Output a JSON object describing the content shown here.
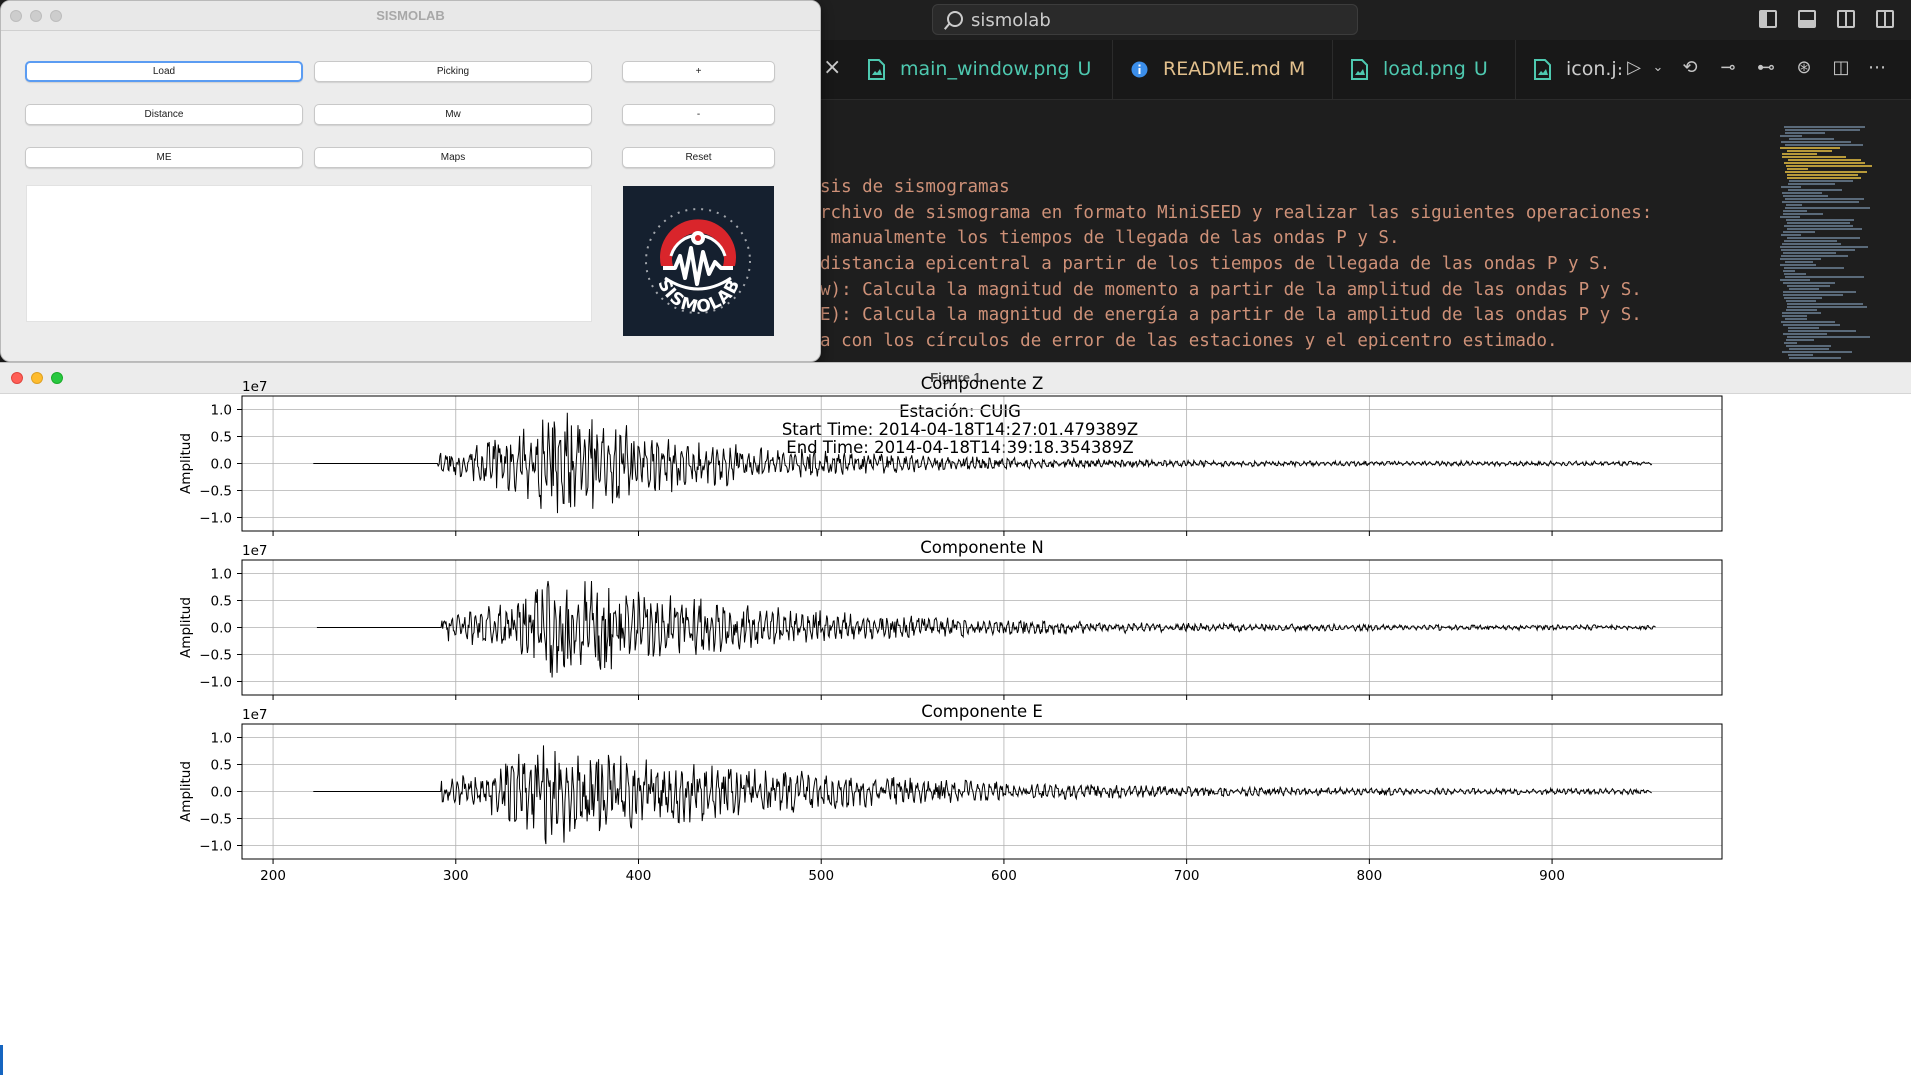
{
  "vscode": {
    "search_text": "sismolab",
    "tabs": [
      {
        "name": "main_window.png",
        "status": "U",
        "color": "#4ec9b0",
        "icon": "image-file-icon"
      },
      {
        "name": "README.md",
        "status": "M",
        "color": "#e2c08d",
        "icon": "info-icon"
      },
      {
        "name": "load.png",
        "status": "U",
        "color": "#4ec9b0",
        "icon": "image-file-icon"
      },
      {
        "name": "icon.j։",
        "status": "",
        "color": "#cccccc",
        "icon": "image-file-icon"
      }
    ],
    "code_lines": [
      "sis de sismogramas",
      "rchivo de sismograma en formato MiniSEED y realizar las siguientes operaciones:",
      " manualmente los tiempos de llegada de las ondas P y S.",
      "distancia epicentral a partir de los tiempos de llegada de las ondas P y S.",
      "w): Calcula la magnitud de momento a partir de la amplitud de las ondas P y S.",
      "E): Calcula la magnitud de energía a partir de la amplitud de las ondas P y S.",
      "a con los círculos de error de las estaciones y el epicentro estimado."
    ],
    "colors": {
      "string": "#ce9178",
      "background": "#1e1e1e"
    }
  },
  "sismolab": {
    "title": "SISMOLAB",
    "buttons": {
      "load": "Load",
      "picking": "Picking",
      "plus": "+",
      "distance": "Distance",
      "mw": "Mw",
      "minus": "-",
      "me": "ME",
      "maps": "Maps",
      "reset": "Reset"
    },
    "logo_text": "SISMOLAB",
    "logo_colors": {
      "background": "#15202f",
      "red": "#d9252b",
      "white": "#ffffff"
    }
  },
  "figure": {
    "window_title": "Figure 1",
    "header": [
      "Estación: CUIG",
      "Start Time: 2014-04-18T14:27:01.479389Z",
      "End Time: 2014-04-18T14:39:18.354389Z"
    ]
  },
  "chart_data": {
    "type": "line",
    "xlim": [
      183,
      993
    ],
    "xticks": [
      200,
      300,
      400,
      500,
      600,
      700,
      800,
      900
    ],
    "ylim": [
      -1.25,
      1.25
    ],
    "yticks": [
      -1.0,
      -0.5,
      0.0,
      0.5,
      1.0
    ],
    "y_tick_labels": [
      "−1.0",
      "−0.5",
      "0.0",
      "0.5",
      "1.0"
    ],
    "offset_label": "1e7",
    "ylabel": "Amplitud",
    "grid": true,
    "line_color": "#000000",
    "series": [
      {
        "title": "Componente Z",
        "x_start": 222,
        "onset": 290,
        "peak_time": 355,
        "peak_amp": 1.0,
        "min_amp": -1.05,
        "decay": 0.011,
        "seed": 7,
        "end": 955
      },
      {
        "title": "Componente N",
        "x_start": 224,
        "onset": 292,
        "peak_time": 355,
        "peak_amp": 1.02,
        "min_amp": -1.0,
        "decay": 0.009,
        "seed": 13,
        "end": 957
      },
      {
        "title": "Componente E",
        "x_start": 222,
        "onset": 292,
        "peak_time": 350,
        "peak_amp": 1.0,
        "min_amp": -1.12,
        "decay": 0.008,
        "seed": 29,
        "end": 955
      }
    ]
  }
}
